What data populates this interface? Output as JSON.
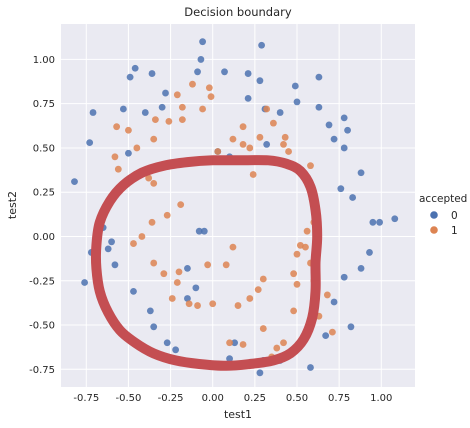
{
  "chart_data": {
    "type": "scatter",
    "title": "Decision boundary",
    "xlabel": "test1",
    "ylabel": "test2",
    "xlim": [
      -0.9,
      1.2
    ],
    "ylim": [
      -0.85,
      1.2
    ],
    "xticks": [
      -0.75,
      -0.5,
      -0.25,
      0.0,
      0.25,
      0.5,
      0.75,
      1.0
    ],
    "xtick_labels": [
      "-0.75",
      "-0.50",
      "-0.25",
      "0.00",
      "0.25",
      "0.50",
      "0.75",
      "1.00"
    ],
    "yticks": [
      -0.75,
      -0.5,
      -0.25,
      0.0,
      0.25,
      0.5,
      0.75,
      1.0
    ],
    "ytick_labels": [
      "-0.75",
      "-0.50",
      "-0.25",
      "0.00",
      "0.25",
      "0.50",
      "0.75",
      "1.00"
    ],
    "grid": true,
    "background_color": "#eaeaf2",
    "legend": {
      "title": "accepted",
      "placement": "right",
      "entries": [
        {
          "label": "0",
          "color": "#4c72b0"
        },
        {
          "label": "1",
          "color": "#dd8452"
        }
      ]
    },
    "series": [
      {
        "name": "0",
        "color": "#4c72b0",
        "points": [
          [
            -0.82,
            0.31
          ],
          [
            -0.73,
            0.53
          ],
          [
            -0.71,
            0.7
          ],
          [
            -0.65,
            0.05
          ],
          [
            -0.72,
            -0.09
          ],
          [
            -0.76,
            -0.26
          ],
          [
            -0.6,
            -0.03
          ],
          [
            -0.62,
            -0.07
          ],
          [
            -0.58,
            -0.16
          ],
          [
            -0.47,
            -0.31
          ],
          [
            -0.37,
            -0.42
          ],
          [
            -0.35,
            -0.51
          ],
          [
            -0.27,
            -0.6
          ],
          [
            -0.22,
            -0.64
          ],
          [
            -0.15,
            -0.35
          ],
          [
            -0.15,
            -0.18
          ],
          [
            -0.1,
            -0.29
          ],
          [
            -0.08,
            0.03
          ],
          [
            -0.05,
            0.03
          ],
          [
            0.13,
            -0.6
          ],
          [
            0.1,
            -0.69
          ],
          [
            0.28,
            -0.77
          ],
          [
            0.3,
            -0.7
          ],
          [
            0.4,
            -0.7
          ],
          [
            0.58,
            -0.74
          ],
          [
            0.67,
            -0.56
          ],
          [
            0.72,
            -0.37
          ],
          [
            0.82,
            -0.51
          ],
          [
            0.78,
            -0.23
          ],
          [
            0.88,
            -0.18
          ],
          [
            0.93,
            -0.09
          ],
          [
            0.95,
            0.08
          ],
          [
            0.99,
            0.08
          ],
          [
            1.08,
            0.1
          ],
          [
            0.83,
            0.22
          ],
          [
            0.76,
            0.27
          ],
          [
            0.88,
            0.36
          ],
          [
            0.78,
            0.5
          ],
          [
            0.72,
            0.55
          ],
          [
            0.8,
            0.6
          ],
          [
            0.78,
            0.67
          ],
          [
            0.69,
            0.63
          ],
          [
            0.63,
            0.73
          ],
          [
            0.5,
            0.76
          ],
          [
            0.49,
            0.85
          ],
          [
            0.63,
            0.9
          ],
          [
            0.4,
            0.7
          ],
          [
            0.31,
            0.72
          ],
          [
            0.21,
            0.78
          ],
          [
            0.21,
            0.92
          ],
          [
            0.07,
            0.93
          ],
          [
            -0.07,
            1.0
          ],
          [
            -0.09,
            0.93
          ],
          [
            -0.28,
            0.81
          ],
          [
            -0.36,
            0.92
          ],
          [
            -0.46,
            0.95
          ],
          [
            -0.49,
            0.9
          ],
          [
            -0.53,
            0.72
          ],
          [
            -0.4,
            0.7
          ],
          [
            -0.3,
            0.73
          ],
          [
            0.28,
            0.88
          ],
          [
            0.32,
            0.52
          ],
          [
            -0.5,
            0.47
          ],
          [
            -0.06,
            1.1
          ],
          [
            0.29,
            1.08
          ],
          [
            0.03,
            0.48
          ],
          [
            0.1,
            0.45
          ]
        ]
      },
      {
        "name": "1",
        "color": "#dd8452",
        "points": [
          [
            -0.56,
            0.38
          ],
          [
            -0.52,
            0.3
          ],
          [
            -0.58,
            0.45
          ],
          [
            -0.57,
            0.62
          ],
          [
            -0.5,
            0.6
          ],
          [
            -0.45,
            0.5
          ],
          [
            -0.35,
            0.55
          ],
          [
            -0.34,
            0.66
          ],
          [
            -0.26,
            0.65
          ],
          [
            -0.18,
            0.73
          ],
          [
            -0.18,
            0.66
          ],
          [
            -0.06,
            0.72
          ],
          [
            -0.01,
            0.79
          ],
          [
            -0.21,
            0.8
          ],
          [
            -0.12,
            0.86
          ],
          [
            -0.02,
            0.84
          ],
          [
            -0.38,
            0.33
          ],
          [
            -0.35,
            0.3
          ],
          [
            -0.36,
            0.08
          ],
          [
            -0.27,
            0.12
          ],
          [
            -0.19,
            0.18
          ],
          [
            -0.42,
            0.0
          ],
          [
            -0.47,
            -0.04
          ],
          [
            -0.35,
            -0.15
          ],
          [
            -0.29,
            -0.21
          ],
          [
            -0.21,
            -0.26
          ],
          [
            -0.2,
            -0.2
          ],
          [
            -0.03,
            -0.16
          ],
          [
            0.08,
            -0.16
          ],
          [
            -0.24,
            -0.35
          ],
          [
            -0.14,
            -0.38
          ],
          [
            -0.09,
            -0.39
          ],
          [
            0.0,
            -0.38
          ],
          [
            0.15,
            -0.39
          ],
          [
            0.22,
            -0.35
          ],
          [
            0.27,
            -0.3
          ],
          [
            0.3,
            -0.24
          ],
          [
            0.48,
            -0.21
          ],
          [
            0.5,
            -0.1
          ],
          [
            0.55,
            -0.06
          ],
          [
            0.58,
            -0.15
          ],
          [
            0.6,
            0.08
          ],
          [
            0.59,
            0.21
          ],
          [
            0.58,
            0.3
          ],
          [
            0.58,
            0.4
          ],
          [
            0.45,
            0.48
          ],
          [
            0.43,
            0.56
          ],
          [
            0.36,
            0.64
          ],
          [
            0.32,
            0.72
          ],
          [
            0.18,
            0.62
          ],
          [
            0.12,
            0.55
          ],
          [
            0.03,
            0.48
          ],
          [
            0.18,
            0.52
          ],
          [
            0.22,
            0.5
          ],
          [
            0.28,
            0.56
          ],
          [
            0.42,
            0.52
          ],
          [
            0.24,
            0.35
          ],
          [
            0.48,
            -0.42
          ],
          [
            0.5,
            -0.27
          ],
          [
            0.52,
            -0.05
          ],
          [
            0.56,
            0.03
          ],
          [
            0.6,
            -0.25
          ],
          [
            0.12,
            -0.06
          ],
          [
            0.1,
            -0.6
          ],
          [
            0.3,
            -0.52
          ],
          [
            0.35,
            -0.68
          ],
          [
            0.71,
            -0.54
          ],
          [
            0.68,
            -0.33
          ],
          [
            0.63,
            -0.45
          ],
          [
            0.42,
            -0.6
          ],
          [
            0.38,
            -0.63
          ],
          [
            0.18,
            -0.61
          ]
        ]
      }
    ],
    "decision_boundary": {
      "color": "#c44e52",
      "points": [
        [
          0.61,
          -0.15
        ],
        [
          0.62,
          0.0
        ],
        [
          0.61,
          0.15
        ],
        [
          0.58,
          0.28
        ],
        [
          0.52,
          0.37
        ],
        [
          0.44,
          0.41
        ],
        [
          0.33,
          0.43
        ],
        [
          0.15,
          0.43
        ],
        [
          0.0,
          0.43
        ],
        [
          -0.15,
          0.42
        ],
        [
          -0.29,
          0.4
        ],
        [
          -0.42,
          0.36
        ],
        [
          -0.53,
          0.29
        ],
        [
          -0.61,
          0.2
        ],
        [
          -0.67,
          0.08
        ],
        [
          -0.69,
          -0.05
        ],
        [
          -0.69,
          -0.18
        ],
        [
          -0.67,
          -0.31
        ],
        [
          -0.62,
          -0.43
        ],
        [
          -0.55,
          -0.53
        ],
        [
          -0.46,
          -0.6
        ],
        [
          -0.35,
          -0.66
        ],
        [
          -0.22,
          -0.7
        ],
        [
          -0.08,
          -0.72
        ],
        [
          0.08,
          -0.73
        ],
        [
          0.22,
          -0.72
        ],
        [
          0.36,
          -0.7
        ],
        [
          0.46,
          -0.66
        ],
        [
          0.54,
          -0.58
        ],
        [
          0.59,
          -0.46
        ],
        [
          0.61,
          -0.31
        ]
      ]
    }
  }
}
